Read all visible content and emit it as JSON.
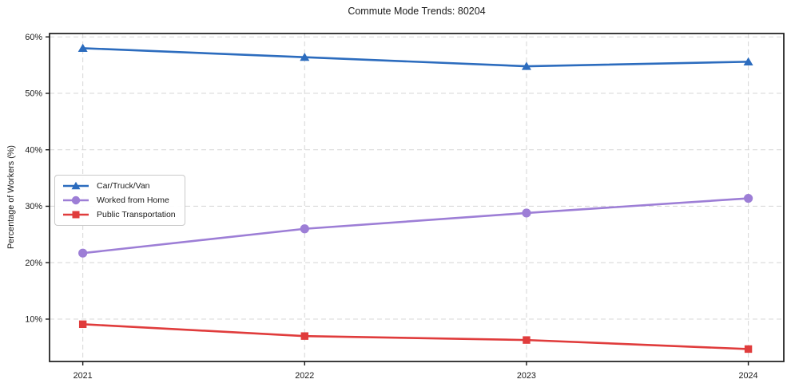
{
  "chart_data": {
    "type": "line",
    "title": "Commute Mode Trends: 80204",
    "xlabel": "",
    "ylabel": "Percentage of Workers (%)",
    "x": [
      2021,
      2022,
      2023,
      2024
    ],
    "x_tick_labels": [
      "2021",
      "2022",
      "2023",
      "2024"
    ],
    "y_ticks": [
      10,
      20,
      30,
      40,
      50,
      60
    ],
    "y_tick_labels": [
      "10%",
      "20%",
      "30%",
      "40%",
      "50%",
      "60%"
    ],
    "xlim": [
      2020.85,
      2024.16
    ],
    "ylim": [
      2.5,
      60.6
    ],
    "grid": true,
    "grid_style": "dashed",
    "legend_position": "center-left",
    "series": [
      {
        "name": "Car/Truck/Van",
        "color": "#2c6cbe",
        "marker": "triangle",
        "values": [
          58.0,
          56.4,
          54.8,
          55.6
        ]
      },
      {
        "name": "Worked from Home",
        "color": "#9d7ed6",
        "marker": "circle",
        "values": [
          21.7,
          26.0,
          28.8,
          31.4
        ]
      },
      {
        "name": "Public Transportation",
        "color": "#e03c3c",
        "marker": "square",
        "values": [
          9.1,
          7.0,
          6.3,
          4.7
        ]
      }
    ],
    "colors": {
      "grid": "#d9d9d9",
      "spine": "#1a1a1a",
      "text": "#1a1a1a",
      "background": "#ffffff"
    }
  }
}
